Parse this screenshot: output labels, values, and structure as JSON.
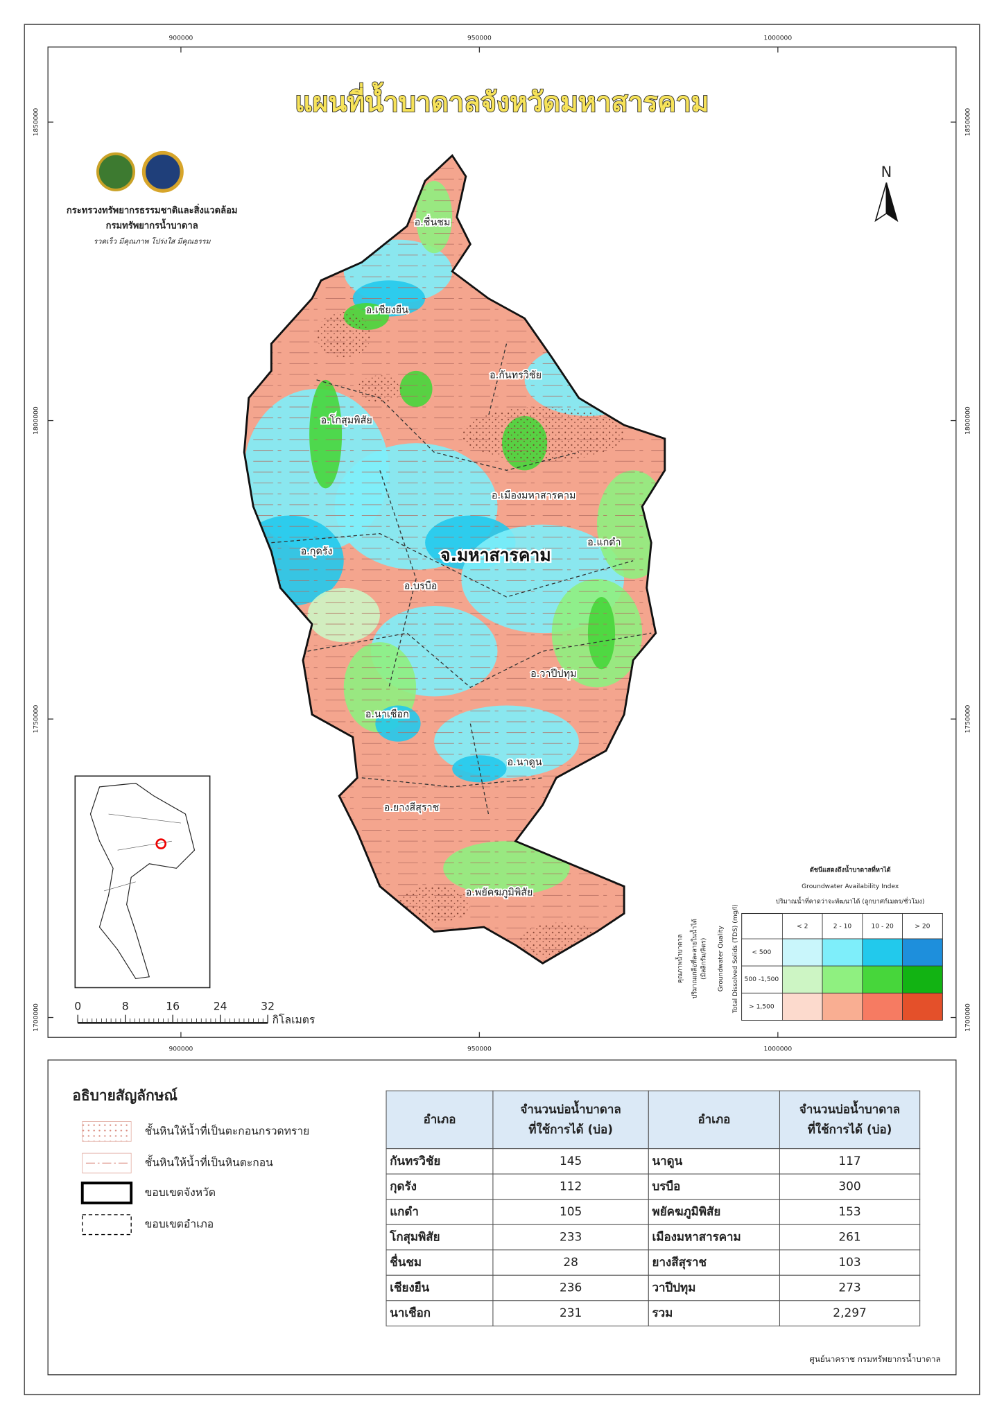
{
  "title": "แผนที่น้ำบาดาลจังหวัดมหาสารคาม",
  "agency": {
    "ministry": "กระทรวงทรัพยากรธรรมชาติและสิ่งแวดล้อม",
    "department": "กรมทรัพยากรน้ำบาดาล",
    "motto": "รวดเร็ว มีคุณภาพ โปร่งใส มีคุณธรรม"
  },
  "north": "N",
  "grid_labels": {
    "easting": [
      "900000",
      "950000",
      "1000000"
    ],
    "northing": [
      "1850000",
      "1800000",
      "1750000",
      "1700000"
    ]
  },
  "map": {
    "province_label": "จ.มหาสารคาม",
    "districts": [
      "อ.ชื่นชม",
      "อ.เชียงยืน",
      "อ.กันทรวิชัย",
      "อ.โกสุมพิสัย",
      "อ.เมืองมหาสารคาม",
      "อ.แกดำ",
      "อ.กุดรัง",
      "อ.บรบือ",
      "อ.วาปีปทุม",
      "อ.นาเชือก",
      "อ.นาดูน",
      "อ.ยางสีสุราช",
      "อ.พยัคฆภูมิพิสัย"
    ]
  },
  "scale_bar": {
    "ticks": [
      0,
      8,
      16,
      24,
      32
    ],
    "unit": "กิโลเมตร"
  },
  "availability_index": {
    "title_th": "ดัชนีแสดงถึงน้ำบาดาลที่หาได้",
    "title_en": "Groundwater Availability Index",
    "subtitle": "ปริมาณน้ำที่คาดว่าจะพัฒนาได้ (ลูกบาศก์เมตร/ชั่วโมง)",
    "quality_th": "คุณภาพน้ำบาดาล",
    "salt_th": "ปริมาณเกลือที่ละลายในน้ำได้",
    "salt_unit": "(มิลลิกรัม/ลิตร)",
    "quality_en": "Groundwater Quality",
    "tds_en": "Total Dissolved Solids (TDS) (mg/l)",
    "columns": [
      "< 2",
      "2 - 10",
      "10 - 20",
      "> 20"
    ],
    "rows": [
      {
        "label": "< 500",
        "colors": [
          "#c9f6fb",
          "#7eeefa",
          "#22c9ec",
          "#1e8fdc"
        ]
      },
      {
        "label": "500 -1,500",
        "colors": [
          "#cdf5c4",
          "#8ff080",
          "#47d63b",
          "#12b313"
        ]
      },
      {
        "label": "> 1,500",
        "colors": [
          "#fcdacd",
          "#f9ae92",
          "#f67b62",
          "#e4502a"
        ]
      }
    ]
  },
  "legend": {
    "title": "อธิบายสัญลักษณ์",
    "items": [
      "ชั้นหินให้น้ำที่เป็นตะกอนกรวดทราย",
      "ชั้นหินให้น้ำที่เป็นหินตะกอน",
      "ขอบเขตจังหวัด",
      "ขอบเขตอำเภอ"
    ]
  },
  "table": {
    "header": [
      [
        "อำเภอ"
      ],
      [
        "จำนวนบ่อน้ำบาดาล",
        "ที่ใช้การได้ (บ่อ)"
      ],
      [
        "อำเภอ"
      ],
      [
        "จำนวนบ่อน้ำบาดาล",
        "ที่ใช้การได้ (บ่อ)"
      ]
    ],
    "rows": [
      [
        "กันทรวิชัย",
        145,
        "นาดูน",
        117
      ],
      [
        "กุดรัง",
        112,
        "บรบือ",
        300
      ],
      [
        "แกดำ",
        105,
        "พยัคฆภูมิพิสัย",
        153
      ],
      [
        "โกสุมพิสัย",
        233,
        "เมืองมหาสารคาม",
        261
      ],
      [
        "ชื่นชม",
        28,
        "ยางสีสุราช",
        103
      ],
      [
        "เชียงยืน",
        236,
        "วาปีปทุม",
        273
      ],
      [
        "นาเชือก",
        231,
        "รวม",
        "2,297"
      ]
    ]
  },
  "credit": "ศูนย์นาคราช กรมทรัพยากรน้ำบาดาล"
}
